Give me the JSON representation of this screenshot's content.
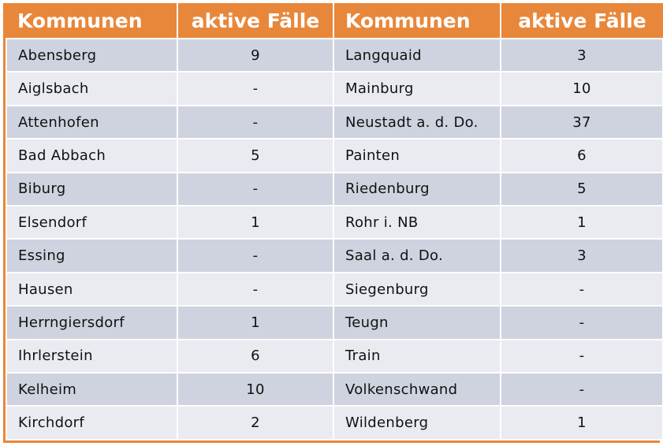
{
  "table": {
    "header": [
      "Kommunen",
      "aktive Fälle",
      "Kommunen",
      "aktive Fälle"
    ],
    "rows": [
      [
        "Abensberg",
        9,
        "Langquaid",
        3
      ],
      [
        "Aiglsbach",
        "-",
        "Mainburg",
        10
      ],
      [
        "Attenhofen",
        "-",
        "Neustadt a. d. Do.",
        37
      ],
      [
        "Bad Abbach",
        5,
        "Painten",
        6
      ],
      [
        "Biburg",
        "-",
        "Riedenburg",
        5
      ],
      [
        "Elsendorf",
        1,
        "Rohr i. NB",
        1
      ],
      [
        "Essing",
        "-",
        "Saal a. d. Do.",
        3
      ],
      [
        "Hausen",
        "-",
        "Siegenburg",
        "-"
      ],
      [
        "Herrngiersdorf",
        1,
        "Teugn",
        "-"
      ],
      [
        "Ihrlerstein",
        6,
        "Train",
        "-"
      ],
      [
        "Kelheim",
        10,
        "Volkenschwand",
        "-"
      ],
      [
        "Kirchdorf",
        2,
        "Wildenberg",
        1
      ]
    ]
  }
}
